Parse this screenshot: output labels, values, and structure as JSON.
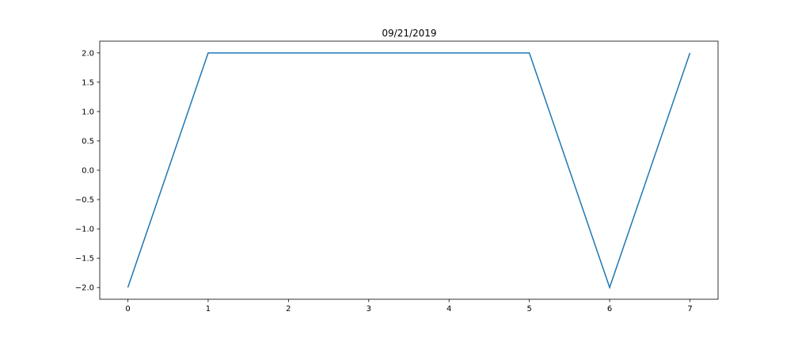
{
  "chart_data": {
    "type": "line",
    "title": "09/21/2019",
    "xlabel": "",
    "ylabel": "",
    "x": [
      0,
      1,
      2,
      3,
      4,
      5,
      6,
      7
    ],
    "series": [
      {
        "values": [
          -2.0,
          2.0,
          2.0,
          2.0,
          2.0,
          2.0,
          -2.0,
          2.0
        ],
        "color": "#1f77b4"
      }
    ],
    "xlim": [
      -0.35,
      7.35
    ],
    "ylim": [
      -2.2,
      2.2
    ],
    "xticks": [
      0,
      1,
      2,
      3,
      4,
      5,
      6,
      7
    ],
    "xtick_labels": [
      "0",
      "1",
      "2",
      "3",
      "4",
      "5",
      "6",
      "7"
    ],
    "yticks": [
      2.0,
      1.5,
      1.0,
      0.5,
      0.0,
      -0.5,
      -1.0,
      -1.5,
      -2.0
    ],
    "ytick_labels": [
      "2.0",
      "1.5",
      "1.0",
      "0.5",
      "0.0",
      "−0.5",
      "−1.0",
      "−1.5",
      "−2.0"
    ],
    "grid": false,
    "legend": "none"
  }
}
